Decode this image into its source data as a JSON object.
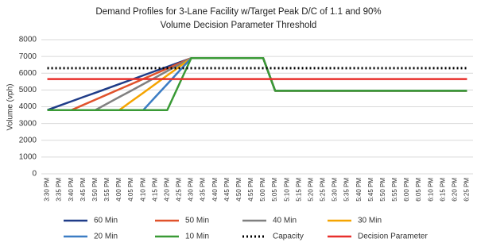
{
  "chart_data": {
    "type": "line",
    "title": "Demand Profiles for 3-Lane Facility w/Target Peak D/C of 1.1 and 90%",
    "subtitle": "Volume Decision Parameter Threshold",
    "y_label": "Volume (vph)",
    "categories": [
      "3:30 PM",
      "3:35 PM",
      "3:40 PM",
      "3:45 PM",
      "3:50 PM",
      "3:55 PM",
      "4:00 PM",
      "4:05 PM",
      "4:10 PM",
      "4:15 PM",
      "4:20 PM",
      "4:25 PM",
      "4:30 PM",
      "4:35 PM",
      "4:40 PM",
      "4:45 PM",
      "4:50 PM",
      "4:55 PM",
      "5:00 PM",
      "5:05 PM",
      "5:10 PM",
      "5:15 PM",
      "5:20 PM",
      "5:25 PM",
      "5:30 PM",
      "5:35 PM",
      "5:40 PM",
      "5:45 PM",
      "5:50 PM",
      "5:55 PM",
      "6:00 PM",
      "6:05 PM",
      "6:10 PM",
      "6:15 PM",
      "6:20 PM",
      "6:25 PM"
    ],
    "ylim": [
      0,
      8000
    ],
    "yticks": [
      0,
      1000,
      2000,
      3000,
      4000,
      5000,
      6000,
      7000,
      8000
    ],
    "grid": true,
    "series": [
      {
        "name": "60 Min",
        "color": "#1f3c88",
        "line_style": "solid",
        "values": [
          3800,
          4060,
          4320,
          4580,
          4830,
          5090,
          5350,
          5610,
          5870,
          6130,
          6380,
          6640,
          6900,
          6900,
          6900,
          6900,
          6900,
          6900,
          6900,
          4950,
          4950,
          4950,
          4950,
          4950,
          4950,
          4950,
          4950,
          4950,
          4950,
          4950,
          4950,
          4950,
          4950,
          4950,
          4950,
          4950
        ]
      },
      {
        "name": "50 Min",
        "color": "#e0522b",
        "line_style": "solid",
        "values": [
          3800,
          3800,
          3800,
          4110,
          4420,
          4730,
          5040,
          5350,
          5660,
          5970,
          6280,
          6590,
          6900,
          6900,
          6900,
          6900,
          6900,
          6900,
          6900,
          4950,
          4950,
          4950,
          4950,
          4950,
          4950,
          4950,
          4950,
          4950,
          4950,
          4950,
          4950,
          4950,
          4950,
          4950,
          4950,
          4950
        ]
      },
      {
        "name": "40 Min",
        "color": "#808080",
        "line_style": "solid",
        "values": [
          3800,
          3800,
          3800,
          3800,
          3800,
          4190,
          4580,
          4960,
          5350,
          5740,
          6130,
          6510,
          6900,
          6900,
          6900,
          6900,
          6900,
          6900,
          6900,
          4950,
          4950,
          4950,
          4950,
          4950,
          4950,
          4950,
          4950,
          4950,
          4950,
          4950,
          4950,
          4950,
          4950,
          4950,
          4950,
          4950
        ]
      },
      {
        "name": "30 Min",
        "color": "#f5a400",
        "line_style": "solid",
        "values": [
          3800,
          3800,
          3800,
          3800,
          3800,
          3800,
          3800,
          4320,
          4830,
          5350,
          5870,
          6380,
          6900,
          6900,
          6900,
          6900,
          6900,
          6900,
          6900,
          4950,
          4950,
          4950,
          4950,
          4950,
          4950,
          4950,
          4950,
          4950,
          4950,
          4950,
          4950,
          4950,
          4950,
          4950,
          4950,
          4950
        ]
      },
      {
        "name": "20 Min",
        "color": "#3c7dc4",
        "line_style": "solid",
        "values": [
          3800,
          3800,
          3800,
          3800,
          3800,
          3800,
          3800,
          3800,
          3800,
          4580,
          5350,
          6130,
          6900,
          6900,
          6900,
          6900,
          6900,
          6900,
          6900,
          4950,
          4950,
          4950,
          4950,
          4950,
          4950,
          4950,
          4950,
          4950,
          4950,
          4950,
          4950,
          4950,
          4950,
          4950,
          4950,
          4950
        ]
      },
      {
        "name": "10 Min",
        "color": "#3a9a36",
        "line_style": "solid",
        "values": [
          3800,
          3800,
          3800,
          3800,
          3800,
          3800,
          3800,
          3800,
          3800,
          3800,
          3800,
          5350,
          6900,
          6900,
          6900,
          6900,
          6900,
          6900,
          6900,
          4950,
          4950,
          4950,
          4950,
          4950,
          4950,
          4950,
          4950,
          4950,
          4950,
          4950,
          4950,
          4950,
          4950,
          4950,
          4950,
          4950
        ]
      },
      {
        "name": "Capacity",
        "color": "#000000",
        "line_style": "dotted",
        "values": [
          6300,
          6300,
          6300,
          6300,
          6300,
          6300,
          6300,
          6300,
          6300,
          6300,
          6300,
          6300,
          6300,
          6300,
          6300,
          6300,
          6300,
          6300,
          6300,
          6300,
          6300,
          6300,
          6300,
          6300,
          6300,
          6300,
          6300,
          6300,
          6300,
          6300,
          6300,
          6300,
          6300,
          6300,
          6300,
          6300
        ]
      },
      {
        "name": "Decision Parameter",
        "color": "#e8302c",
        "line_style": "solid",
        "values": [
          5650,
          5650,
          5650,
          5650,
          5650,
          5650,
          5650,
          5650,
          5650,
          5650,
          5650,
          5650,
          5650,
          5650,
          5650,
          5650,
          5650,
          5650,
          5650,
          5650,
          5650,
          5650,
          5650,
          5650,
          5650,
          5650,
          5650,
          5650,
          5650,
          5650,
          5650,
          5650,
          5650,
          5650,
          5650,
          5650
        ]
      }
    ]
  }
}
